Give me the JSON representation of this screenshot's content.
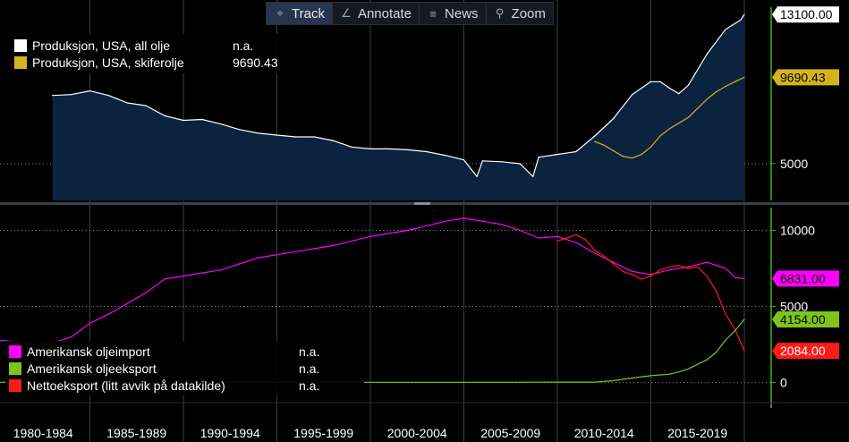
{
  "toolbar": {
    "items": [
      {
        "label": "Track",
        "icon": "crosshair-icon"
      },
      {
        "label": "Annotate",
        "icon": "pencil-icon"
      },
      {
        "label": "News",
        "icon": "news-icon"
      },
      {
        "label": "Zoom",
        "icon": "magnifier-icon"
      }
    ]
  },
  "legend_top": [
    {
      "label": "Produksjon, USA, all olje",
      "value": "n.a.",
      "color": "#ffffff"
    },
    {
      "label": "Produksjon, USA, skiferolje",
      "value": "9690.43",
      "color": "#d4b41c"
    }
  ],
  "legend_bottom": [
    {
      "label": "Amerikansk oljeimport",
      "value": "n.a.",
      "color": "#ff00ff"
    },
    {
      "label": "Amerikansk oljeeksport",
      "value": "n.a.",
      "color": "#7fc41c"
    },
    {
      "label": "Nettoeksport (litt avvik på datakilde)",
      "value": "n.a.",
      "color": "#ff1a1a"
    }
  ],
  "colors": {
    "background": "#000000",
    "area_fill": "#0c2340",
    "all_oil": "#ffffff",
    "shale": "#d4b41c",
    "imports": "#ff00ff",
    "exports": "#7fc41c",
    "net_exports": "#ff1a1a",
    "axis_accent": "#3fb618"
  },
  "chart_data": [
    {
      "type": "area",
      "ylim": [
        3000,
        13500
      ],
      "yticks": [
        {
          "value": 5000,
          "label": "5000"
        }
      ],
      "last_value_tags": [
        {
          "series": "all_oil",
          "value": 13100,
          "label": "13100.00",
          "bg": "#ffffff",
          "fg": "#000000"
        },
        {
          "series": "shale",
          "value": 9690.43,
          "label": "9690.43",
          "bg": "#d4b41c",
          "fg": "#000000"
        }
      ],
      "series": [
        {
          "key": "all_oil",
          "name": "Produksjon, USA, all olje",
          "color": "#ffffff",
          "fill": true,
          "x": [
            1983.0,
            1984.0,
            1985.0,
            1986.0,
            1987.0,
            1988.0,
            1989.0,
            1990.0,
            1991.0,
            1992.0,
            1993.0,
            1994.0,
            1995.0,
            1996.0,
            1997.0,
            1998.0,
            1999.0,
            2000.0,
            2001.0,
            2002.0,
            2003.0,
            2004.0,
            2005.0,
            2005.7,
            2006.0,
            2007.0,
            2008.0,
            2008.7,
            2009.0,
            2010.0,
            2011.0,
            2012.0,
            2013.0,
            2014.0,
            2015.0,
            2015.5,
            2016.0,
            2016.5,
            2017.0,
            2018.0,
            2019.0,
            2019.8,
            2020.0
          ],
          "y": [
            8700,
            8750,
            8950,
            8700,
            8300,
            8150,
            7600,
            7350,
            7400,
            7150,
            6850,
            6650,
            6550,
            6450,
            6450,
            6250,
            5900,
            5800,
            5800,
            5750,
            5650,
            5450,
            5200,
            4300,
            5150,
            5100,
            5000,
            4300,
            5350,
            5500,
            5650,
            6500,
            7450,
            8750,
            9450,
            9450,
            9100,
            8800,
            9250,
            10950,
            12300,
            12800,
            13100
          ]
        },
        {
          "key": "shale",
          "name": "Produksjon, USA, skiferolje",
          "color": "#d4b41c",
          "fill": false,
          "x": [
            2012.0,
            2012.5,
            2013.0,
            2013.5,
            2014.0,
            2014.5,
            2015.0,
            2015.5,
            2016.0,
            2016.5,
            2017.0,
            2017.5,
            2018.0,
            2018.5,
            2019.0,
            2019.5,
            2020.0
          ],
          "y": [
            6200,
            6000,
            5700,
            5400,
            5300,
            5500,
            5900,
            6500,
            6900,
            7200,
            7500,
            8000,
            8500,
            8900,
            9200,
            9450,
            9690.43
          ]
        }
      ]
    },
    {
      "type": "line",
      "ylim": [
        -1200,
        11500
      ],
      "yticks": [
        {
          "value": 10000,
          "label": "10000"
        },
        {
          "value": 5000,
          "label": "5000"
        },
        {
          "value": 0,
          "label": "0"
        }
      ],
      "last_value_tags": [
        {
          "series": "imports",
          "value": 6831,
          "label": "6831.00",
          "bg": "#ff00ff",
          "fg": "#000000"
        },
        {
          "series": "exports",
          "value": 4154,
          "label": "4154.00",
          "bg": "#7fc41c",
          "fg": "#000000"
        },
        {
          "series": "net_exports",
          "value": 2084,
          "label": "2084.00",
          "bg": "#ff1a1a",
          "fg": "#ffffff"
        }
      ],
      "series": [
        {
          "key": "imports",
          "name": "Amerikansk oljeimport",
          "color": "#ff00ff",
          "x": [
            1973.0,
            1974.0,
            1975.0,
            1976.0,
            1977.0,
            1978.0,
            1979.0,
            1980.0,
            1981.0,
            1982.0,
            1983.0,
            1984.0,
            1985.0,
            1986.0,
            1987.0,
            1988.0,
            1989.0,
            1990.0,
            1991.0,
            1992.0,
            1993.0,
            1994.0,
            1995.0,
            1996.0,
            1997.0,
            1998.0,
            1999.0,
            2000.0,
            2001.0,
            2002.0,
            2003.0,
            2004.0,
            2005.0,
            2006.0,
            2007.0,
            2008.0,
            2009.0,
            2010.0,
            2011.0,
            2012.0,
            2013.0,
            2014.0,
            2015.0,
            2016.0,
            2017.0,
            2018.0,
            2019.0,
            2019.5,
            2020.0
          ],
          "y": [
            5500,
            5100,
            4700,
            4200,
            3800,
            3400,
            3000,
            2800,
            2700,
            2500,
            2600,
            3000,
            3900,
            4500,
            5200,
            5900,
            6800,
            7000,
            7200,
            7400,
            7800,
            8200,
            8400,
            8600,
            8800,
            9000,
            9300,
            9600,
            9800,
            10000,
            10300,
            10600,
            10800,
            10600,
            10400,
            10000,
            9500,
            9600,
            9200,
            8500,
            7900,
            7300,
            7100,
            7400,
            7600,
            7900,
            7500,
            6900,
            6831
          ]
        },
        {
          "key": "net_exports",
          "name": "Nettoeksport (litt avvik på datakilde)",
          "color": "#ff1a1a",
          "x": [
            2010.0,
            2010.5,
            2011.0,
            2011.5,
            2012.0,
            2012.5,
            2013.0,
            2013.5,
            2014.0,
            2014.5,
            2015.0,
            2015.5,
            2016.0,
            2016.5,
            2017.0,
            2017.5,
            2018.0,
            2018.5,
            2019.0,
            2019.5,
            2020.0
          ],
          "y": [
            9300,
            9500,
            9700,
            9400,
            8700,
            8300,
            7800,
            7300,
            7100,
            6800,
            7000,
            7400,
            7600,
            7700,
            7500,
            7600,
            7000,
            6000,
            4500,
            3500,
            2084
          ]
        },
        {
          "key": "exports",
          "name": "Amerikansk oljeeksport",
          "color": "#7fc41c",
          "x": [
            1973.0,
            1985.0,
            1995.0,
            2005.0,
            2012.0,
            2013.0,
            2014.0,
            2015.0,
            2016.0,
            2016.5,
            2017.0,
            2017.5,
            2018.0,
            2018.5,
            2019.0,
            2019.5,
            2020.0
          ],
          "y": [
            20,
            20,
            20,
            20,
            30,
            120,
            300,
            450,
            550,
            700,
            900,
            1200,
            1500,
            2000,
            2800,
            3400,
            4154
          ]
        }
      ]
    }
  ],
  "x_axis": {
    "labels": [
      "1980-1984",
      "1985-1989",
      "1990-1994",
      "1995-1999",
      "2000-2004",
      "2005-2009",
      "2010-2014",
      "2015-2019"
    ]
  }
}
